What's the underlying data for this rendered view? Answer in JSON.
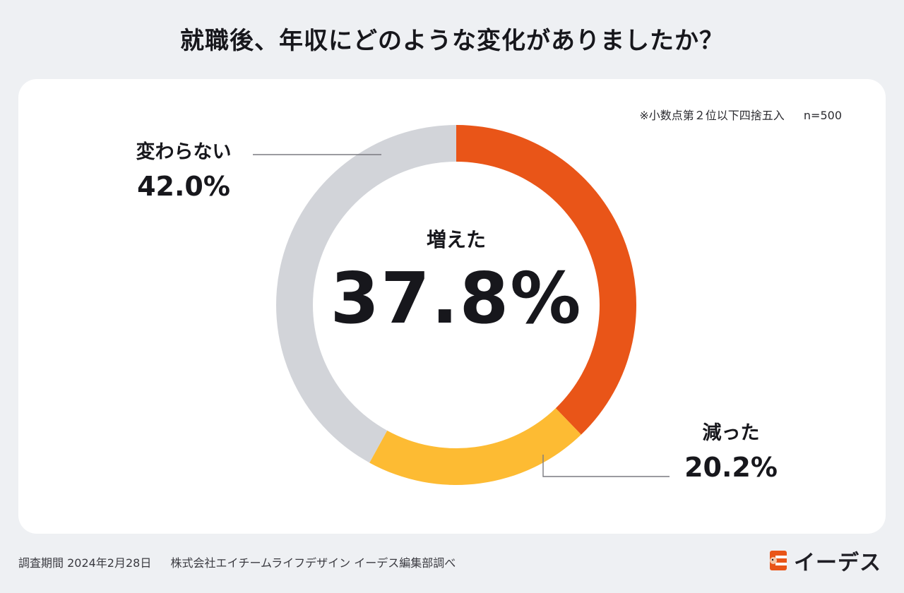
{
  "title": "就職後、年収にどのような変化がありましたか？",
  "note": {
    "rounding": "※小数点第２位以下四捨五入",
    "sample": "n=500"
  },
  "chart_data": {
    "type": "pie",
    "style": "donut",
    "title": "就職後、年収にどのような変化がありましたか？",
    "unit": "%",
    "slices": [
      {
        "label": "増えた",
        "value": 37.8,
        "display": "37.8%",
        "color": "#e95518"
      },
      {
        "label": "減った",
        "value": 20.2,
        "display": "20.2%",
        "color": "#fdbb33"
      },
      {
        "label": "変わらない",
        "value": 42.0,
        "display": "42.0%",
        "color": "#d2d4d9"
      }
    ],
    "center_label": {
      "label": "増えた",
      "value": "37.8%"
    }
  },
  "footer": {
    "period": "調査期間 2024年2月28日",
    "company": "株式会社エイチームライフデザイン イーデス編集部調べ"
  },
  "logo": {
    "text": "イーデス",
    "color": "#e95518"
  }
}
